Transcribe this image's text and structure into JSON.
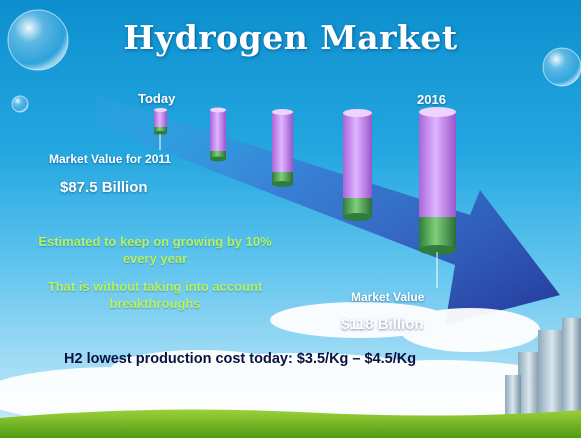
{
  "title": "Hydrogen Market",
  "labels": {
    "today": "Today",
    "year_end": "2016",
    "market_value_2011": "Market Value for 2011",
    "value_2011": "$87.5 Billion",
    "market_value": "Market Value",
    "value_2016": "$118 Billion"
  },
  "notes": {
    "growth": "Estimated to keep on growing by 10% every year",
    "caveat": "That is without taking into account breakthroughs"
  },
  "footer": "H2 lowest production cost today: $3.5/Kg – $4.5/Kg",
  "colors": {
    "cylinder_top": "#c98af2",
    "cylinder_base": "#4fa35a",
    "arrow": "#2b3fa6",
    "note_text": "#b6f25e"
  }
}
